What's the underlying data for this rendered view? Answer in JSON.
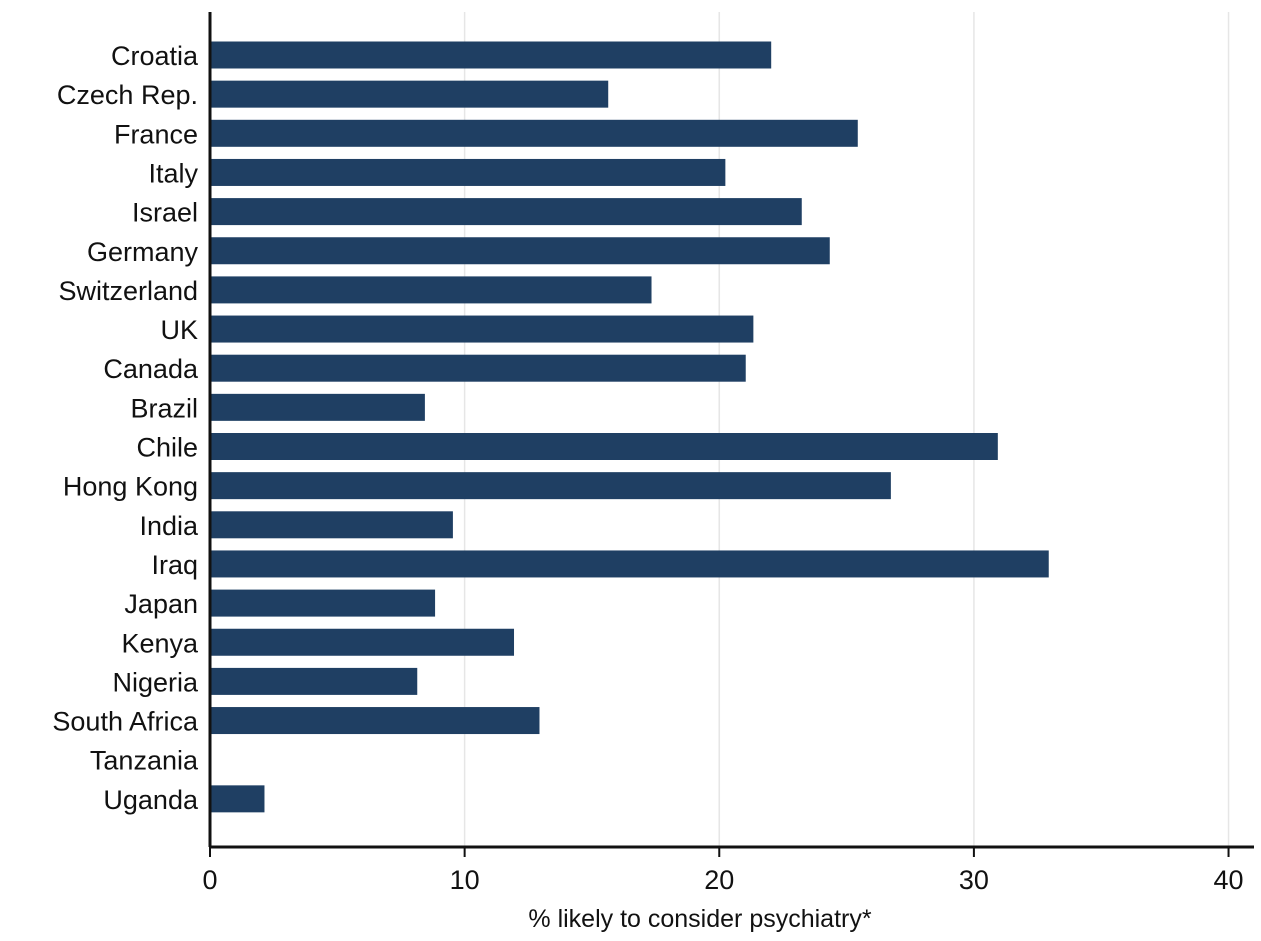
{
  "chart_data": {
    "type": "bar",
    "orientation": "horizontal",
    "categories": [
      "Croatia",
      "Czech Rep.",
      "France",
      "Italy",
      "Israel",
      "Germany",
      "Switzerland",
      "UK",
      "Canada",
      "Brazil",
      "Chile",
      "Hong Kong",
      "India",
      "Iraq",
      "Japan",
      "Kenya",
      "Nigeria",
      "South Africa",
      "Tanzania",
      "Uganda"
    ],
    "values": [
      22.0,
      15.6,
      25.4,
      20.2,
      23.2,
      24.3,
      17.3,
      21.3,
      21.0,
      8.4,
      30.9,
      26.7,
      9.5,
      32.9,
      8.8,
      11.9,
      8.1,
      12.9,
      0,
      2.1
    ],
    "xlabel": "% likely to consider psychiatry*",
    "ylabel": "",
    "title": "",
    "xlim": [
      0,
      41
    ],
    "xticks": [
      0,
      10,
      20,
      30,
      40
    ],
    "grid": "vertical",
    "bar_color": "#1f3f63",
    "grid_color": "#e6e6e6"
  }
}
